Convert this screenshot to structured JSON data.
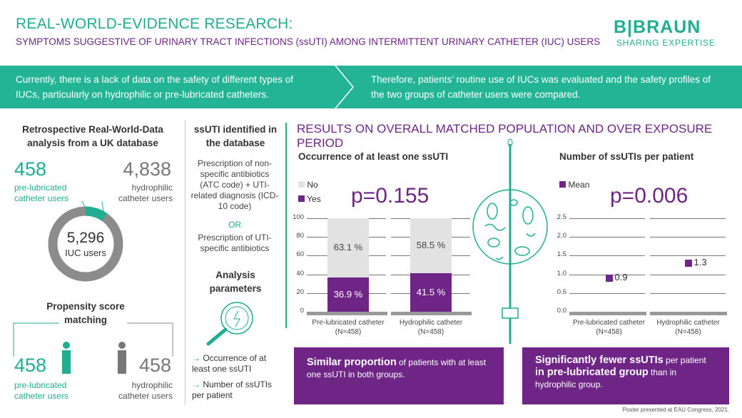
{
  "header": {
    "title": "REAL-WORLD-EVIDENCE RESEARCH:",
    "subtitle": "SYMPTOMS SUGGESTIVE OF URINARY TRACT INFECTIONS (ssUTI) AMONG INTERMITTENT URINARY CATHETER (IUC) USERS",
    "logo": "B|BRAUN",
    "logo_tagline": "SHARING EXPERTISE"
  },
  "band": {
    "left": "Currently, there is a lack of data on the safety of different types of IUCs, particularly on hydrophilic or pre-lubricated catheters.",
    "right": "Therefore, patients’ routine use of IUCs was evaluated and the safety profiles of the two groups of catheter users were compared."
  },
  "left": {
    "heading": "Retrospective Real-World-Data analysis from a UK database",
    "pre_count": "458",
    "pre_label": "pre-lubricated catheter users",
    "hyd_count": "4,838",
    "hyd_label": "hydrophilic catheter users",
    "total": "5,296",
    "total_label": "IUC users",
    "psm_heading": "Propensity score matching",
    "m_pre_count": "458",
    "m_pre_label": "pre-lubricated catheter users",
    "m_hyd_count": "458",
    "m_hyd_label": "hydrophilic catheter users"
  },
  "middle": {
    "heading": "ssUTI identified in the database",
    "def1": "Prescription of non-specific antibiotics (ATC code) + UTI-related diagnosis (ICD-10 code)",
    "or": "OR",
    "def2": "Prescription of UTI-specific antibiotics",
    "params_heading": "Analysis parameters",
    "param1": "Occurrence of at least one ssUTI",
    "param2": "Number of ssUTIs per patient",
    "arrow": "→"
  },
  "results": {
    "heading": "RESULTS ON OVERALL MATCHED POPULATION AND OVER EXPOSURE PERIOD",
    "box1_bold": "Similar proportion",
    "box1_rest": " of patients with at least one ssUTI in both groups.",
    "box2_bold1": "Significantly fewer ssUTIs",
    "box2_mid": " per patient ",
    "box2_bold2": "in pre-lubricated group",
    "box2_rest": " than in hydrophilic group."
  },
  "footer": "Poster presented at EAU Congress, 2021.",
  "colors": {
    "teal": "#1fae91",
    "purple": "#6e2585",
    "gray": "#e2e2e2"
  },
  "chart_data": [
    {
      "type": "bar",
      "title": "Occurrence of at least one ssUTI",
      "pvalue": "p=0.155",
      "categories": [
        "Pre-lubricated catheter",
        "Hydrophilic catheter"
      ],
      "category_n": [
        "(N=458)",
        "(N=458)"
      ],
      "series": [
        {
          "name": "Yes",
          "values": [
            36.9,
            41.5
          ],
          "labels": [
            "36.9 %",
            "41.5 %"
          ]
        },
        {
          "name": "No",
          "values": [
            63.1,
            58.5
          ],
          "labels": [
            "63.1 %",
            "58.5 %"
          ]
        }
      ],
      "ylim": [
        0,
        100
      ],
      "yticks": [
        "0",
        "20",
        "40",
        "60",
        "80",
        "100"
      ],
      "legend": [
        "No",
        "Yes"
      ],
      "stacked": true
    },
    {
      "type": "scatter",
      "title": "Number of ssUTIs per patient",
      "pvalue": "p=0.006",
      "categories": [
        "Pre-lubricated catheter",
        "Hydrophilic catheter"
      ],
      "category_n": [
        "(N=458)",
        "(N=458)"
      ],
      "series": [
        {
          "name": "Mean",
          "values": [
            0.9,
            1.3
          ],
          "labels": [
            "0.9",
            "1.3"
          ]
        }
      ],
      "ylim": [
        0,
        2.5
      ],
      "yticks": [
        "0.0",
        "0.5",
        "1.0",
        "1.5",
        "2.0",
        "2.5"
      ],
      "legend": [
        "Mean"
      ]
    }
  ]
}
